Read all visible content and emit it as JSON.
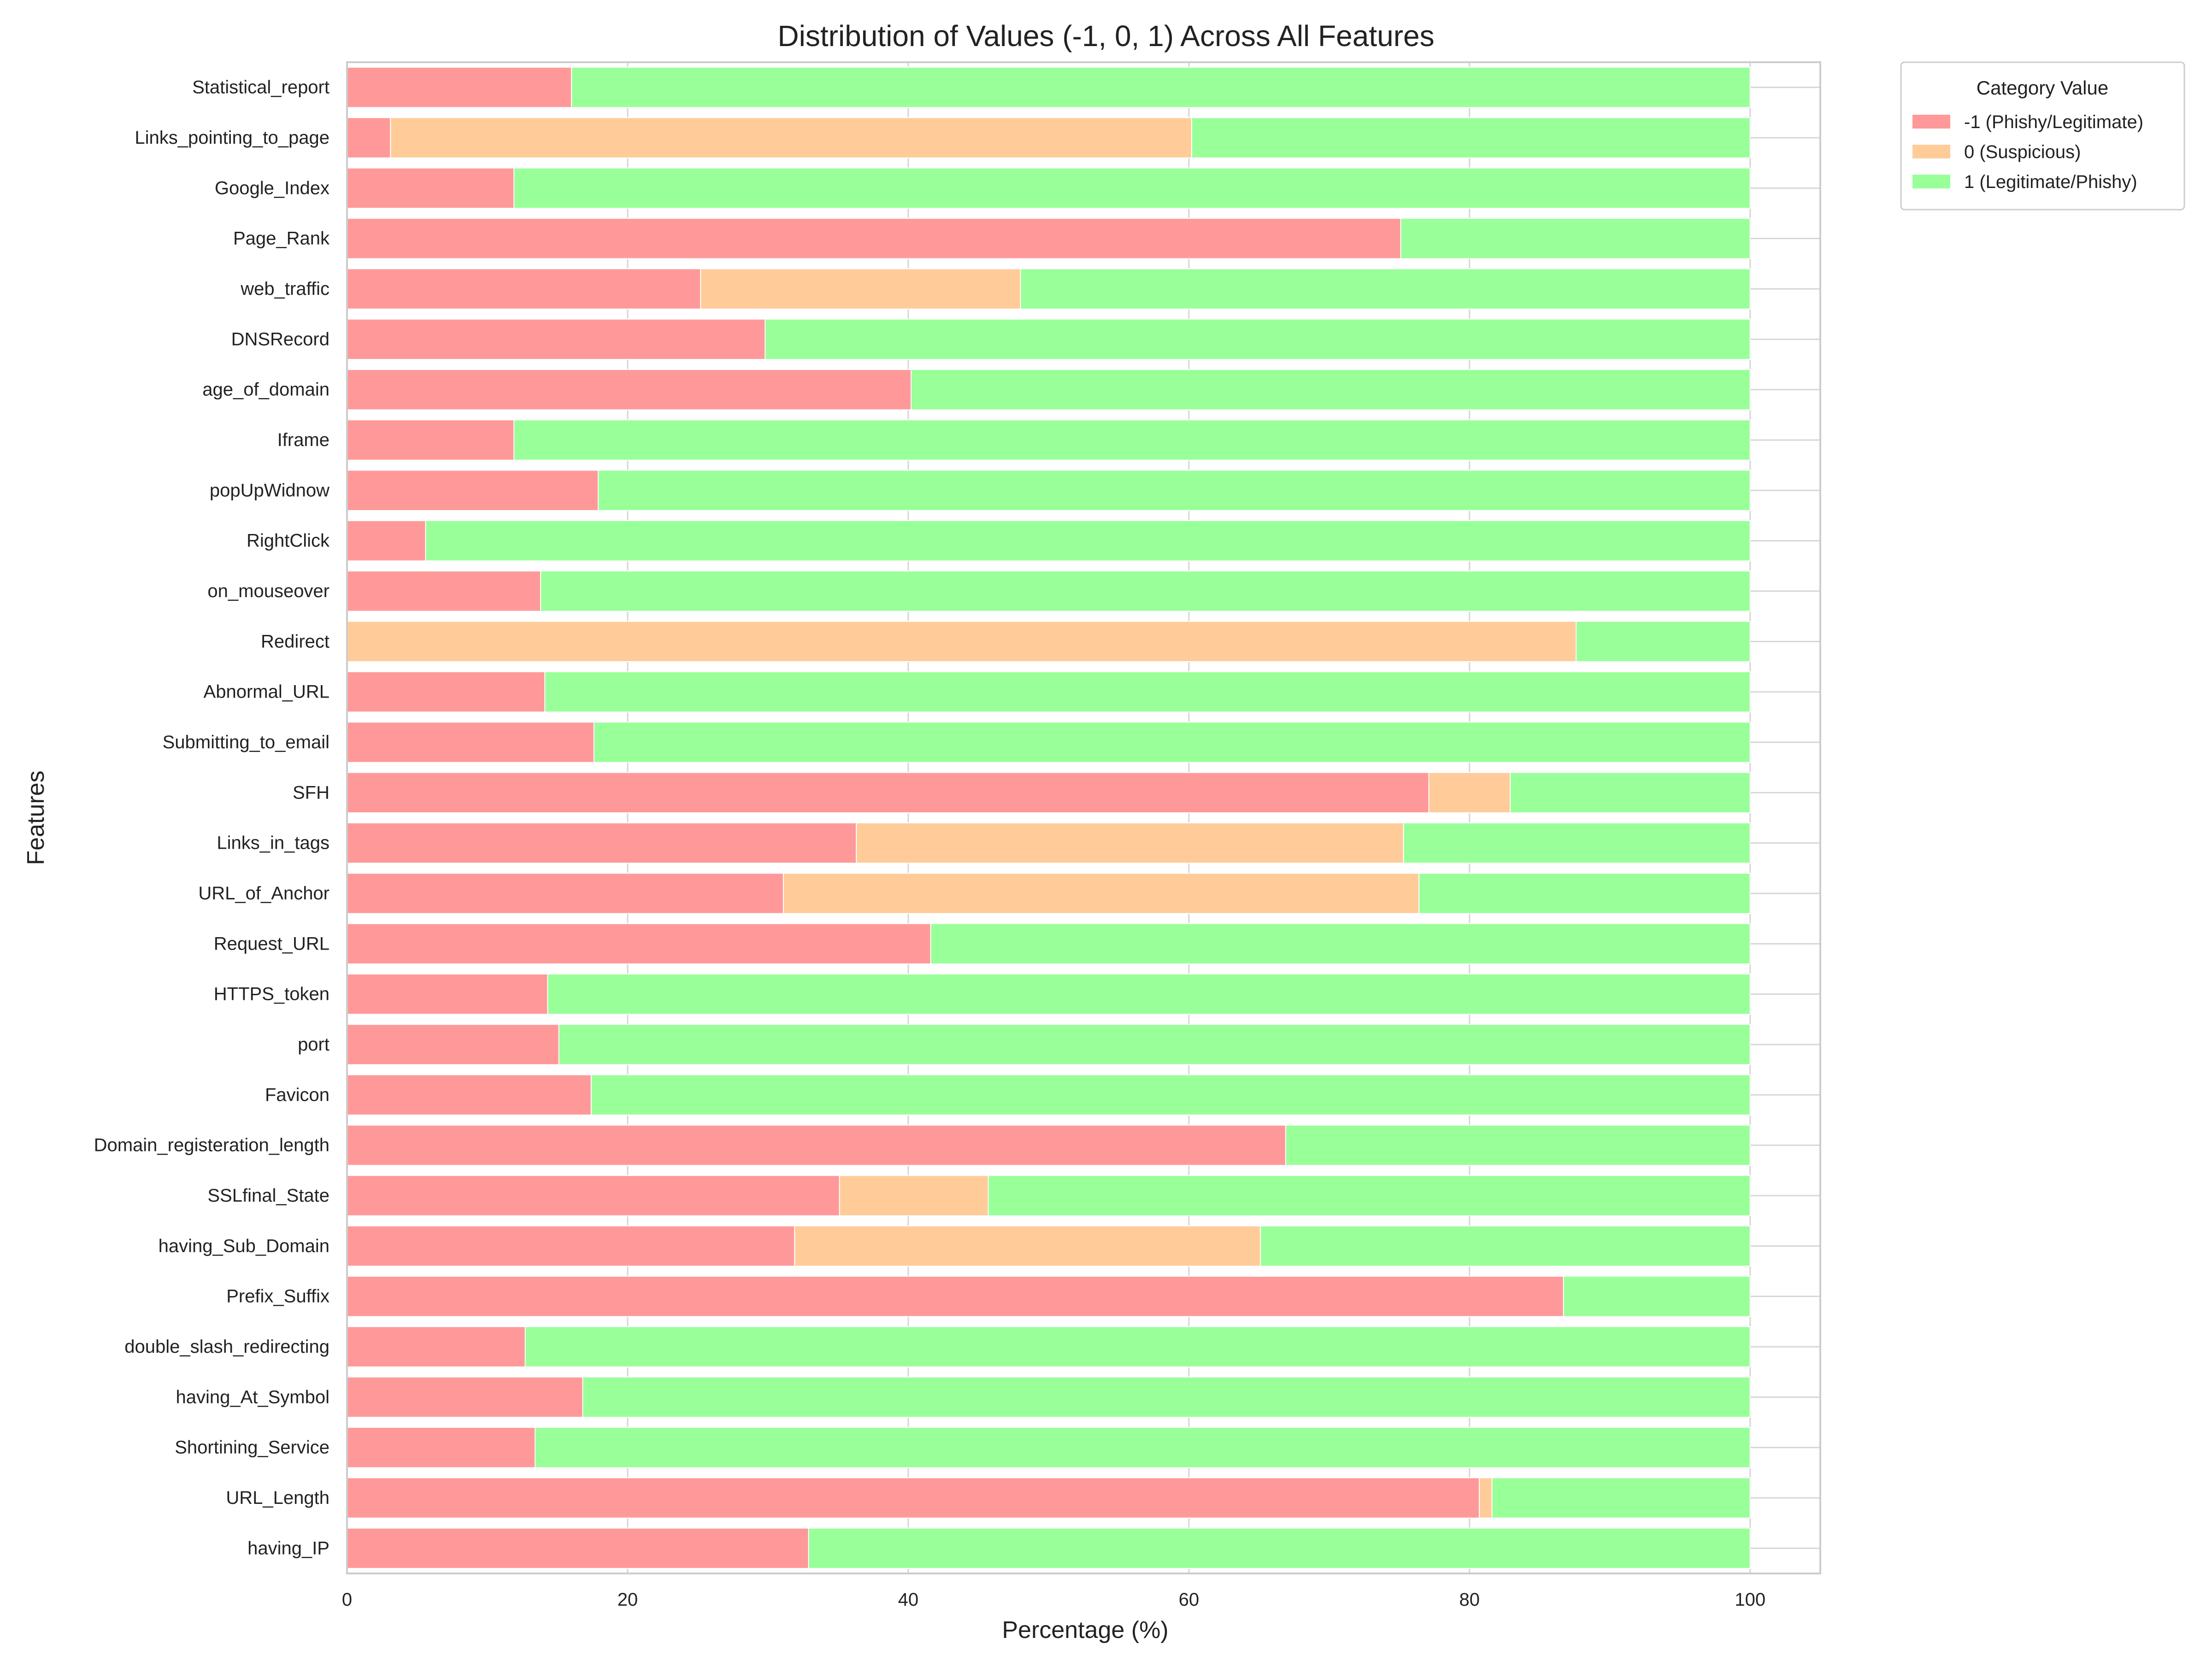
{
  "chart_data": {
    "type": "bar",
    "orientation": "horizontal",
    "stacked": true,
    "title": "Distribution of Values (-1, 0, 1) Across All Features",
    "xlabel": "Percentage (%)",
    "ylabel": "Features",
    "xlim": [
      0,
      105
    ],
    "x_ticks": [
      0,
      20,
      40,
      60,
      80,
      100
    ],
    "grid": true,
    "legend_placement": "outside-top-right",
    "legend_title": "Category Value",
    "categories": [
      "having_IP",
      "URL_Length",
      "Shortining_Service",
      "having_At_Symbol",
      "double_slash_redirecting",
      "Prefix_Suffix",
      "having_Sub_Domain",
      "SSLfinal_State",
      "Domain_registeration_length",
      "Favicon",
      "port",
      "HTTPS_token",
      "Request_URL",
      "URL_of_Anchor",
      "Links_in_tags",
      "SFH",
      "Submitting_to_email",
      "Abnormal_URL",
      "Redirect",
      "on_mouseover",
      "RightClick",
      "popUpWidnow",
      "Iframe",
      "age_of_domain",
      "DNSRecord",
      "web_traffic",
      "Page_Rank",
      "Google_Index",
      "Links_pointing_to_page",
      "Statistical_report"
    ],
    "series": [
      {
        "name": "-1 (Phishy/Legitimate)",
        "color": "#ff9999",
        "values": [
          32.9,
          80.7,
          13.4,
          16.8,
          12.7,
          86.7,
          31.9,
          35.1,
          66.9,
          17.4,
          15.1,
          14.3,
          41.6,
          31.1,
          36.3,
          77.1,
          17.6,
          14.1,
          0,
          13.8,
          5.6,
          17.9,
          11.9,
          40.2,
          29.8,
          25.2,
          75.1,
          11.9,
          3.1,
          16.0
        ]
      },
      {
        "name": "0 (Suspicious)",
        "color": "#ffcc99",
        "values": [
          0,
          0.9,
          0,
          0,
          0,
          0,
          33.2,
          10.6,
          0,
          0,
          0,
          0,
          0,
          45.3,
          39.0,
          5.8,
          0,
          0,
          87.6,
          0,
          0,
          0,
          0,
          0,
          0,
          22.8,
          0,
          0,
          57.1,
          0
        ]
      },
      {
        "name": "1 (Legitimate/Phishy)",
        "color": "#99ff99",
        "values": [
          67.1,
          18.4,
          86.6,
          83.2,
          87.3,
          13.3,
          34.9,
          54.3,
          33.1,
          82.6,
          84.9,
          85.7,
          58.4,
          23.6,
          24.7,
          17.1,
          82.4,
          85.9,
          12.4,
          86.2,
          94.4,
          82.1,
          88.1,
          59.8,
          70.2,
          52.0,
          24.9,
          88.1,
          39.8,
          84.0
        ]
      }
    ]
  }
}
